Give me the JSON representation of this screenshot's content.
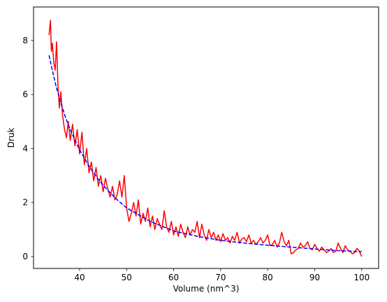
{
  "chart_data": {
    "type": "line",
    "title": "",
    "xlabel": "Volume (nm^3)",
    "ylabel": "Druk",
    "xlim": [
      30.2,
      103.6
    ],
    "ylim": [
      -0.44,
      9.24
    ],
    "xticks": [
      40,
      50,
      60,
      70,
      80,
      90,
      100
    ],
    "yticks": [
      0,
      2,
      4,
      6,
      8
    ],
    "grid": false,
    "legend": "none",
    "series": [
      {
        "style": "solid",
        "color": "#ff0000",
        "x": [
          33.5,
          33.8,
          34.0,
          34.2,
          34.5,
          34.8,
          35.1,
          35.4,
          35.7,
          36.0,
          36.4,
          36.8,
          37.2,
          37.6,
          38.0,
          38.5,
          39.0,
          39.5,
          40.0,
          40.5,
          41.0,
          41.5,
          42.0,
          42.5,
          43.0,
          43.5,
          44.0,
          44.5,
          45.0,
          45.5,
          46.0,
          46.5,
          47.0,
          47.5,
          48.0,
          48.5,
          49.0,
          49.5,
          50.0,
          50.5,
          51.0,
          51.5,
          52.0,
          52.5,
          53.0,
          53.5,
          54.0,
          54.5,
          55.0,
          55.5,
          56.0,
          56.5,
          57.0,
          57.5,
          58.0,
          58.5,
          59.0,
          59.5,
          60.0,
          60.5,
          61.0,
          61.5,
          62.0,
          62.5,
          63.0,
          63.5,
          64.0,
          64.5,
          65.0,
          65.5,
          66.0,
          66.5,
          67.0,
          67.5,
          68.0,
          68.5,
          69.0,
          69.5,
          70.0,
          70.5,
          71.0,
          71.5,
          72.0,
          72.5,
          73.0,
          73.5,
          74.0,
          74.5,
          75.0,
          75.5,
          76.0,
          76.5,
          77.0,
          77.5,
          78.0,
          78.5,
          79.0,
          79.5,
          80.0,
          80.5,
          81.0,
          81.5,
          82.0,
          82.5,
          83.0,
          83.5,
          84.0,
          84.5,
          85.0,
          85.5,
          86.0,
          86.5,
          87.0,
          87.5,
          88.0,
          88.5,
          89.0,
          89.5,
          90.0,
          90.5,
          91.0,
          91.5,
          92.0,
          92.5,
          93.0,
          93.5,
          94.0,
          94.5,
          95.0,
          95.5,
          96.0,
          96.5,
          97.0,
          97.5,
          98.0,
          98.5,
          99.0,
          99.5,
          100.0
        ],
        "y": [
          8.2,
          8.75,
          7.6,
          7.9,
          7.2,
          6.9,
          7.95,
          6.3,
          5.5,
          6.1,
          5.2,
          4.7,
          4.4,
          5.0,
          4.3,
          4.9,
          4.1,
          4.7,
          3.8,
          4.6,
          3.4,
          4.0,
          3.1,
          3.5,
          2.8,
          3.3,
          2.6,
          3.0,
          2.4,
          2.9,
          2.5,
          2.2,
          2.6,
          2.1,
          2.3,
          2.8,
          2.2,
          3.0,
          1.8,
          1.3,
          1.6,
          2.0,
          1.5,
          2.1,
          1.2,
          1.6,
          1.3,
          1.8,
          1.1,
          1.5,
          1.0,
          1.4,
          1.2,
          1.0,
          1.7,
          1.1,
          0.9,
          1.3,
          0.8,
          1.1,
          0.75,
          1.2,
          0.9,
          0.7,
          1.1,
          0.8,
          1.0,
          0.9,
          1.3,
          0.7,
          1.2,
          0.8,
          0.6,
          1.0,
          0.7,
          0.9,
          0.6,
          0.8,
          0.55,
          0.85,
          0.6,
          0.7,
          0.5,
          0.75,
          0.6,
          0.9,
          0.5,
          0.65,
          0.7,
          0.55,
          0.8,
          0.5,
          0.6,
          0.45,
          0.55,
          0.7,
          0.5,
          0.6,
          0.8,
          0.4,
          0.45,
          0.6,
          0.35,
          0.5,
          0.9,
          0.55,
          0.4,
          0.6,
          0.1,
          0.15,
          0.25,
          0.3,
          0.5,
          0.35,
          0.4,
          0.55,
          0.3,
          0.25,
          0.45,
          0.3,
          0.2,
          0.35,
          0.25,
          0.15,
          0.2,
          0.3,
          0.15,
          0.2,
          0.5,
          0.3,
          0.15,
          0.4,
          0.25,
          0.2,
          0.1,
          0.15,
          0.3,
          0.2,
          0.0
        ]
      },
      {
        "style": "dashed",
        "color": "#0000ff",
        "x": [
          33.5,
          34.0,
          35.0,
          36.0,
          37.0,
          38.0,
          40.0,
          42.0,
          44.0,
          46.0,
          48.0,
          50.0,
          55.0,
          60.0,
          65.0,
          70.0,
          75.0,
          80.0,
          85.0,
          90.0,
          95.0,
          100.0
        ],
        "y": [
          7.45,
          7.05,
          6.3,
          5.7,
          5.15,
          4.7,
          3.95,
          3.35,
          2.85,
          2.45,
          2.1,
          1.8,
          1.3,
          0.95,
          0.75,
          0.6,
          0.5,
          0.42,
          0.35,
          0.28,
          0.22,
          0.18
        ]
      }
    ]
  }
}
